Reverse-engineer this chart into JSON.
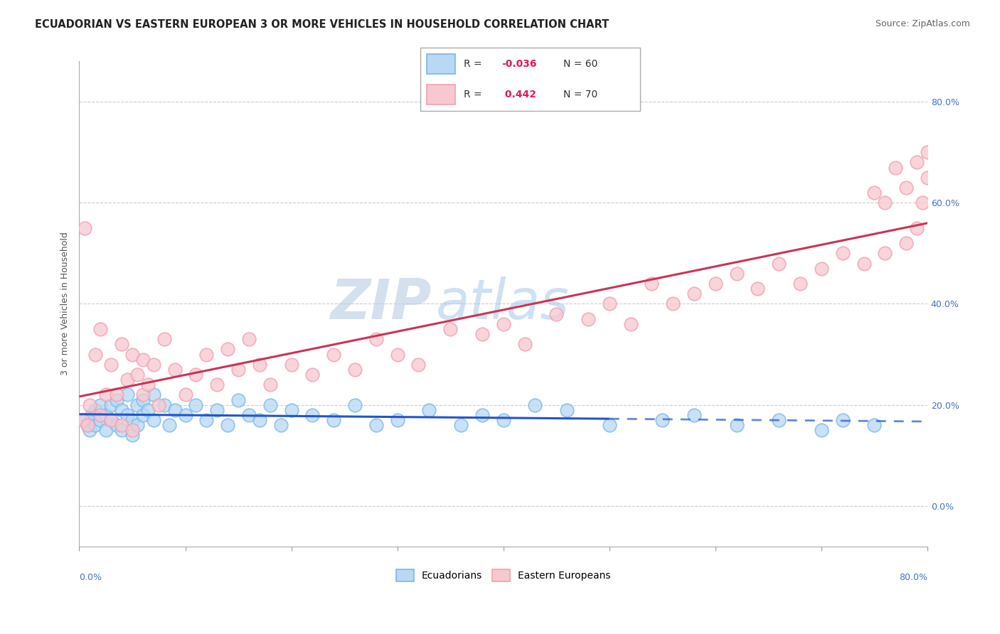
{
  "title": "ECUADORIAN VS EASTERN EUROPEAN 3 OR MORE VEHICLES IN HOUSEHOLD CORRELATION CHART",
  "source": "Source: ZipAtlas.com",
  "ylabel": "3 or more Vehicles in Household",
  "legend_label1": "Ecuadorians",
  "legend_label2": "Eastern Europeans",
  "r1": "-0.036",
  "n1": "60",
  "r2": "0.442",
  "n2": "70",
  "color1_edge": "#7ab8e8",
  "color2_edge": "#f0a0b0",
  "color1_fill": "#b8d8f4",
  "color2_fill": "#f8c8d0",
  "line_color1": "#2255cc",
  "line_color2": "#cc3355",
  "watermark_zip": "ZIP",
  "watermark_atlas": "atlas",
  "xlim": [
    0.0,
    80.0
  ],
  "ylim": [
    -8.0,
    88.0
  ],
  "yticks": [
    0,
    20,
    40,
    60,
    80
  ],
  "xticks": [
    0,
    10,
    20,
    30,
    40,
    50,
    60,
    70,
    80
  ],
  "blue_x": [
    0.5,
    0.8,
    1.0,
    1.2,
    1.5,
    1.5,
    2.0,
    2.0,
    2.5,
    2.5,
    3.0,
    3.0,
    3.5,
    3.5,
    4.0,
    4.0,
    4.5,
    4.5,
    5.0,
    5.0,
    5.5,
    5.5,
    6.0,
    6.0,
    6.5,
    7.0,
    7.0,
    8.0,
    8.5,
    9.0,
    10.0,
    11.0,
    12.0,
    13.0,
    14.0,
    15.0,
    16.0,
    17.0,
    18.0,
    19.0,
    20.0,
    22.0,
    24.0,
    26.0,
    28.0,
    30.0,
    33.0,
    36.0,
    38.0,
    40.0,
    43.0,
    46.0,
    50.0,
    55.0,
    58.0,
    62.0,
    66.0,
    70.0,
    72.0,
    75.0
  ],
  "blue_y": [
    17,
    16,
    15,
    18,
    19,
    16,
    17,
    20,
    18,
    15,
    20,
    17,
    16,
    21,
    19,
    15,
    18,
    22,
    17,
    14,
    20,
    16,
    21,
    18,
    19,
    17,
    22,
    20,
    16,
    19,
    18,
    20,
    17,
    19,
    16,
    21,
    18,
    17,
    20,
    16,
    19,
    18,
    17,
    20,
    16,
    17,
    19,
    16,
    18,
    17,
    20,
    19,
    16,
    17,
    18,
    16,
    17,
    15,
    17,
    16
  ],
  "pink_x": [
    0.3,
    0.5,
    0.8,
    1.0,
    1.5,
    2.0,
    2.0,
    2.5,
    3.0,
    3.0,
    3.5,
    4.0,
    4.0,
    4.5,
    5.0,
    5.0,
    5.5,
    6.0,
    6.0,
    6.5,
    7.0,
    7.5,
    8.0,
    9.0,
    10.0,
    11.0,
    12.0,
    13.0,
    14.0,
    15.0,
    16.0,
    17.0,
    18.0,
    20.0,
    22.0,
    24.0,
    26.0,
    28.0,
    30.0,
    32.0,
    35.0,
    38.0,
    40.0,
    42.0,
    45.0,
    48.0,
    50.0,
    52.0,
    54.0,
    56.0,
    58.0,
    60.0,
    62.0,
    64.0,
    66.0,
    68.0,
    70.0,
    72.0,
    74.0,
    76.0,
    78.0,
    79.0,
    79.5,
    80.0,
    80.0,
    79.0,
    78.0,
    77.0,
    76.0,
    75.0
  ],
  "pink_y": [
    17,
    55,
    16,
    20,
    30,
    18,
    35,
    22,
    28,
    17,
    22,
    32,
    16,
    25,
    30,
    15,
    26,
    29,
    22,
    24,
    28,
    20,
    33,
    27,
    22,
    26,
    30,
    24,
    31,
    27,
    33,
    28,
    24,
    28,
    26,
    30,
    27,
    33,
    30,
    28,
    35,
    34,
    36,
    32,
    38,
    37,
    40,
    36,
    44,
    40,
    42,
    44,
    46,
    43,
    48,
    44,
    47,
    50,
    48,
    50,
    52,
    55,
    60,
    65,
    70,
    68,
    63,
    67,
    60,
    62
  ]
}
